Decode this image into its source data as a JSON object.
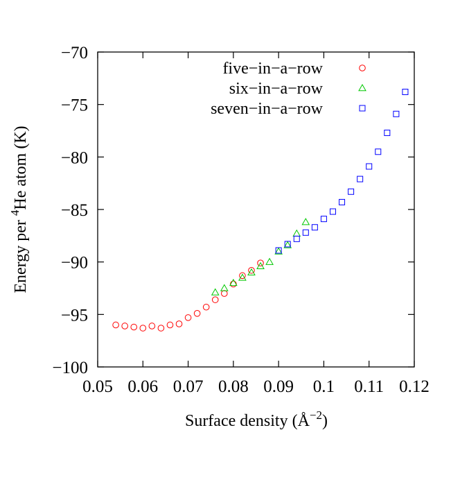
{
  "chart_data": {
    "type": "scatter",
    "xlabel": "Surface density (Å",
    "xlabel_sup": "−2",
    "xlabel_close": ")",
    "ylabel_pre": "Energy per ",
    "ylabel_sup": "4",
    "ylabel_post": "He atom (K)",
    "xlim": [
      0.05,
      0.12
    ],
    "ylim": [
      -100,
      -70
    ],
    "x_ticks": [
      0.05,
      0.06,
      0.07,
      0.08,
      0.09,
      0.1,
      0.11,
      0.12
    ],
    "x_tick_labels": [
      "0.05",
      "0.06",
      "0.07",
      "0.08",
      "0.09",
      "0.1",
      "0.11",
      "0.12"
    ],
    "y_ticks": [
      -100,
      -95,
      -90,
      -85,
      -80,
      -75,
      -70
    ],
    "y_tick_labels": [
      "−100",
      "−95",
      "−90",
      "−85",
      "−80",
      "−75",
      "−70"
    ],
    "grid": false,
    "legend_position": "top-right",
    "series": [
      {
        "name": "five−in−a−row",
        "color": "#ff0000",
        "marker": "circle",
        "x": [
          0.054,
          0.056,
          0.058,
          0.06,
          0.062,
          0.064,
          0.066,
          0.068,
          0.07,
          0.072,
          0.074,
          0.076,
          0.078,
          0.08,
          0.082,
          0.084,
          0.086
        ],
        "y": [
          -96.0,
          -96.1,
          -96.2,
          -96.3,
          -96.1,
          -96.3,
          -96.0,
          -95.9,
          -95.3,
          -94.9,
          -94.3,
          -93.6,
          -93.0,
          -92.1,
          -91.3,
          -90.8,
          -90.1
        ]
      },
      {
        "name": "six−in−a−row",
        "color": "#00c800",
        "marker": "triangle",
        "x": [
          0.076,
          0.078,
          0.08,
          0.082,
          0.084,
          0.086,
          0.088,
          0.09,
          0.092,
          0.094,
          0.096
        ],
        "y": [
          -92.9,
          -92.5,
          -92.0,
          -91.5,
          -91.0,
          -90.4,
          -90.0,
          -89.0,
          -88.4,
          -87.3,
          -86.2
        ]
      },
      {
        "name": "seven−in−a−row",
        "color": "#0000ff",
        "marker": "square",
        "x": [
          0.09,
          0.092,
          0.094,
          0.096,
          0.098,
          0.1,
          0.102,
          0.104,
          0.106,
          0.108,
          0.11,
          0.112,
          0.114,
          0.116,
          0.118
        ],
        "y": [
          -88.9,
          -88.3,
          -87.8,
          -87.2,
          -86.7,
          -85.9,
          -85.2,
          -84.3,
          -83.3,
          -82.1,
          -80.9,
          -79.5,
          -77.7,
          -75.9,
          -73.8
        ]
      }
    ]
  }
}
